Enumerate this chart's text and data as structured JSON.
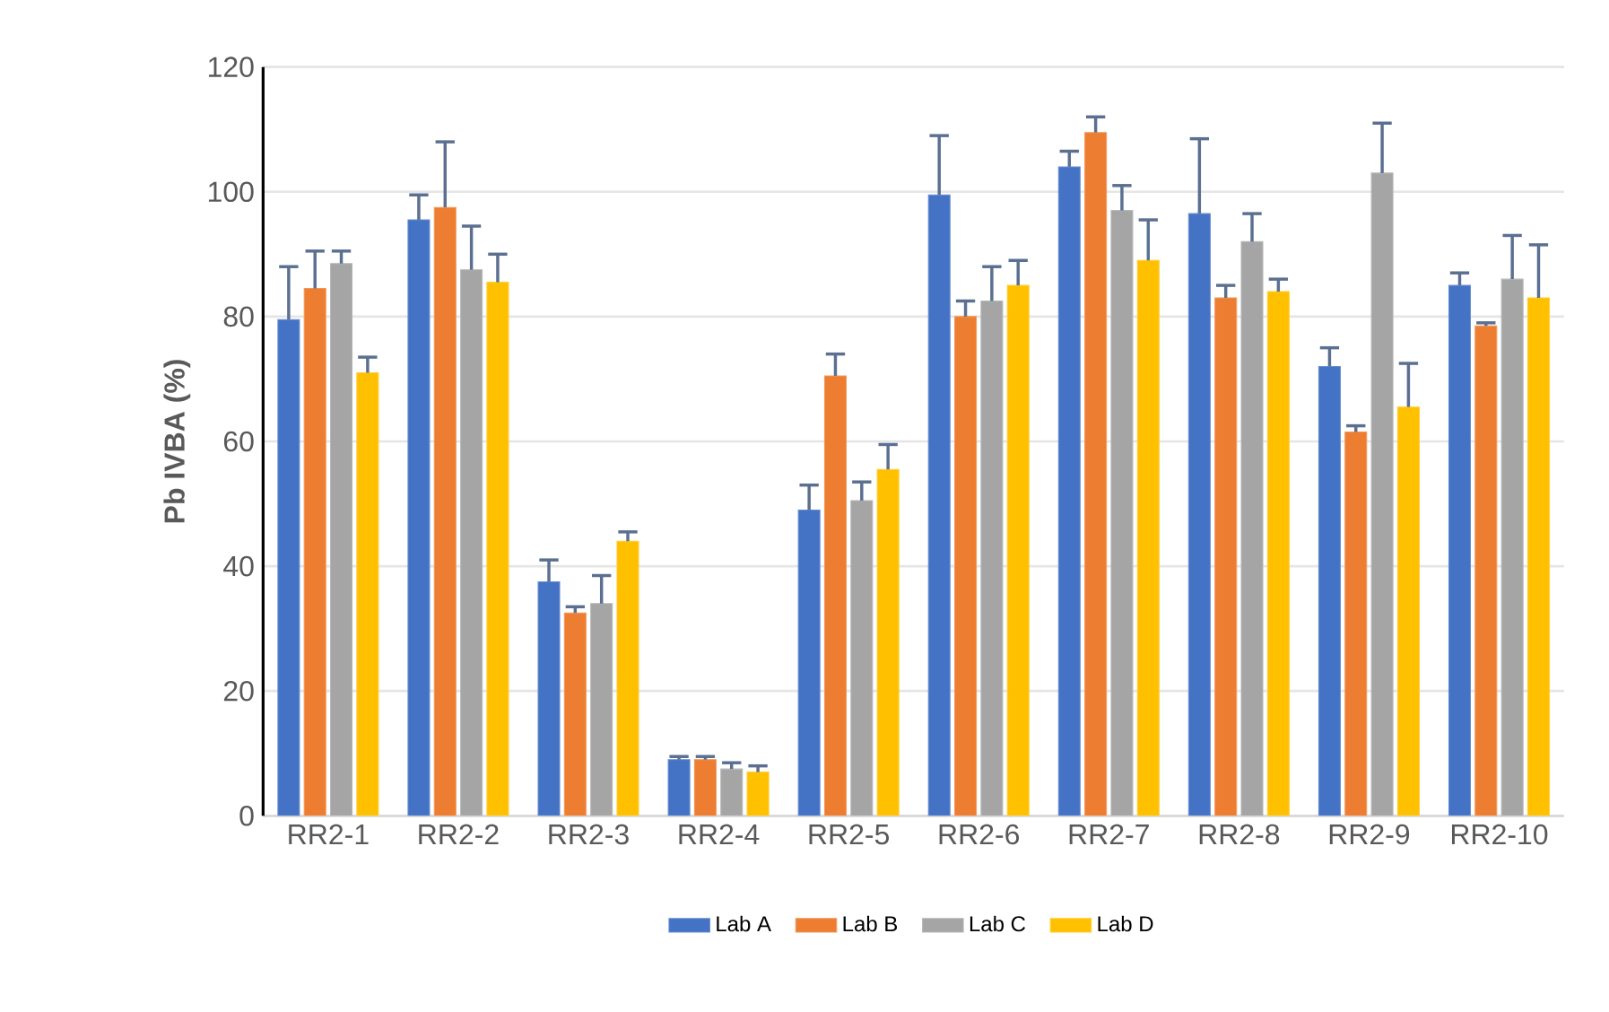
{
  "chart_data": {
    "type": "bar",
    "ylabel": "Pb IVBA (%)",
    "categories": [
      "RR2-1",
      "RR2-2",
      "RR2-3",
      "RR2-4",
      "RR2-5",
      "RR2-6",
      "RR2-7",
      "RR2-8",
      "RR2-9",
      "RR2-10"
    ],
    "series": [
      {
        "name": "Lab A",
        "color": "#4472c4",
        "values": [
          79.5,
          95.5,
          37.5,
          9,
          49,
          99.5,
          104,
          96.5,
          72,
          85
        ],
        "errors": [
          [
            79.5,
            88
          ],
          [
            95.5,
            99.5
          ],
          [
            37.5,
            41
          ],
          [
            9,
            9.5
          ],
          [
            49,
            53
          ],
          [
            99.5,
            109
          ],
          [
            104,
            106.5
          ],
          [
            96.5,
            108.5
          ],
          [
            72,
            75
          ],
          [
            85,
            87
          ]
        ]
      },
      {
        "name": "Lab B",
        "color": "#ed7d31",
        "values": [
          84.5,
          97.5,
          32.5,
          9,
          70.5,
          80,
          109.5,
          83,
          61.5,
          78.5
        ],
        "errors": [
          [
            84.5,
            90.5
          ],
          [
            97.5,
            108
          ],
          [
            32.5,
            33.5
          ],
          [
            9,
            9.5
          ],
          [
            70.5,
            74
          ],
          [
            80,
            82.5
          ],
          [
            109.5,
            112
          ],
          [
            83,
            85
          ],
          [
            61.5,
            62.5
          ],
          [
            78.5,
            79
          ]
        ]
      },
      {
        "name": "Lab C",
        "color": "#a5a5a5",
        "values": [
          88.5,
          87.5,
          34,
          7.5,
          50.5,
          82.5,
          97,
          92,
          103,
          86
        ],
        "errors": [
          [
            88.5,
            90.5
          ],
          [
            87.5,
            94.5
          ],
          [
            34,
            38.5
          ],
          [
            7.5,
            8.5
          ],
          [
            50.5,
            53.5
          ],
          [
            82.5,
            88
          ],
          [
            97,
            101
          ],
          [
            92,
            96.5
          ],
          [
            103,
            111
          ],
          [
            86,
            93
          ]
        ]
      },
      {
        "name": "Lab D",
        "color": "#ffc000",
        "values": [
          71,
          85.5,
          44,
          7,
          55.5,
          85,
          89,
          84,
          65.5,
          83
        ],
        "errors": [
          [
            71,
            73.5
          ],
          [
            85.5,
            90
          ],
          [
            44,
            45.5
          ],
          [
            7,
            8
          ],
          [
            55.5,
            59.5
          ],
          [
            85,
            89
          ],
          [
            89,
            95.5
          ],
          [
            84,
            86
          ],
          [
            65.5,
            72.5
          ],
          [
            83,
            91.5
          ]
        ]
      }
    ],
    "ylim": [
      0,
      120
    ],
    "yticks": [
      0,
      20,
      40,
      60,
      80,
      100,
      120
    ],
    "grid": "y",
    "legend": "bottom"
  }
}
